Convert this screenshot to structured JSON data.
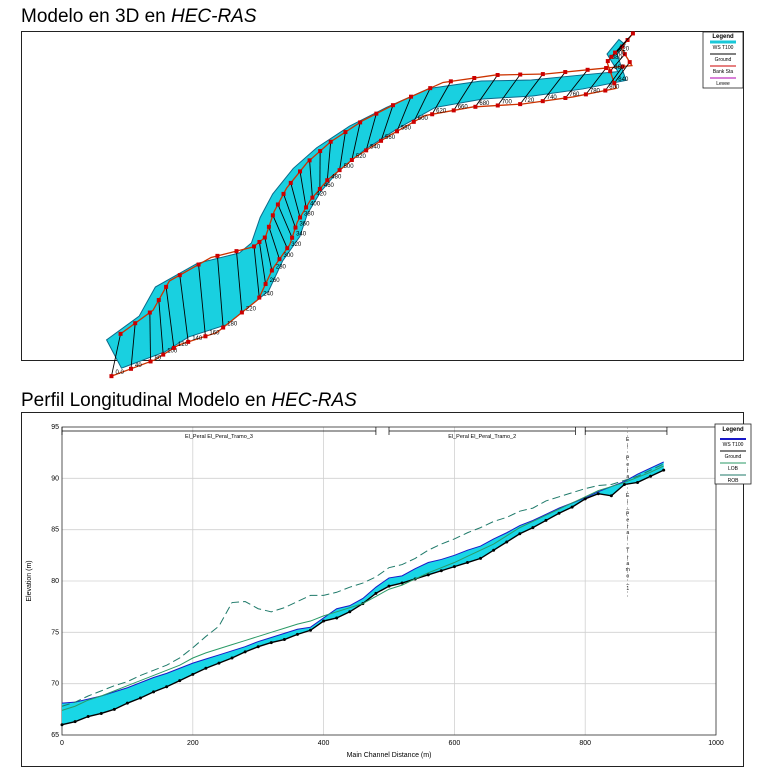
{
  "titles": {
    "top_plain": "Modelo en 3D en ",
    "top_italic": "HEC-RAS",
    "bottom_plain": "Perfil Longitudinal Modelo en ",
    "bottom_italic": "HEC-RAS"
  },
  "plan3d": {
    "legend": {
      "title": "Legend",
      "items": [
        {
          "label": "WS T100",
          "color": "#19c8d8"
        },
        {
          "label": "Ground",
          "color": "#000000"
        },
        {
          "label": "Bank Sta",
          "color": "#cc0000"
        },
        {
          "label": "Levee",
          "color": "#b000b0"
        }
      ]
    },
    "station_labels": [
      "0.0",
      "40",
      "80",
      "100",
      "120",
      "140",
      "160",
      "180",
      "220",
      "240",
      "260",
      "280",
      "300",
      "320",
      "340",
      "360",
      "380",
      "400",
      "420",
      "460",
      "480",
      "500",
      "520",
      "540",
      "560",
      "580",
      "600",
      "620",
      "660",
      "680",
      "700",
      "720",
      "740",
      "760",
      "780",
      "800",
      "840",
      "860",
      "880",
      "900",
      "920"
    ]
  },
  "chart_data": {
    "type": "line",
    "xlabel": "Main Channel Distance (m)",
    "ylabel": "Elevation (m)",
    "xlim": [
      0,
      1000
    ],
    "ylim": [
      65,
      95
    ],
    "x_ticks": [
      "0",
      "200",
      "400",
      "600",
      "800",
      "1000"
    ],
    "y_ticks": [
      "65",
      "70",
      "75",
      "80",
      "85",
      "90",
      "95"
    ],
    "grid": true,
    "legend_position": "top-right",
    "reaches": [
      {
        "label": "El_Peral El_Peral_Tramo_3",
        "x_start": 0,
        "x_end": 480
      },
      {
        "label": "El_Peral El_Peral_Tramo_2",
        "x_start": 500,
        "x_end": 785
      },
      {
        "label": "El Peral El_Peral_Tramo_1",
        "x_start": 800,
        "x_end": 925
      }
    ],
    "reach3_vertical_label": [
      "E",
      "l",
      "",
      "P",
      "e",
      "r",
      "a",
      "l",
      "",
      "E",
      "l",
      "_",
      "P",
      "e",
      "r",
      "a",
      "l",
      "_",
      "T",
      "r",
      "a",
      "m",
      "o",
      "_",
      "1"
    ],
    "series": [
      {
        "name": "WS T100",
        "color": "#1818c8",
        "x": [
          0,
          20,
          40,
          60,
          80,
          100,
          120,
          140,
          160,
          180,
          200,
          220,
          240,
          260,
          280,
          300,
          320,
          340,
          360,
          380,
          400,
          420,
          440,
          460,
          480,
          500,
          520,
          540,
          560,
          580,
          600,
          620,
          640,
          660,
          680,
          700,
          720,
          740,
          760,
          780,
          800,
          820,
          840,
          860,
          880,
          900,
          920
        ],
        "y": [
          68.1,
          68.2,
          68.5,
          68.8,
          69.2,
          69.6,
          70.1,
          70.6,
          71.0,
          71.5,
          72.0,
          72.4,
          72.8,
          73.2,
          73.6,
          74.1,
          74.5,
          74.9,
          75.3,
          75.5,
          76.4,
          77.3,
          77.6,
          78.3,
          79.4,
          80.3,
          80.5,
          81.2,
          81.8,
          82.1,
          82.5,
          83.0,
          83.4,
          84.1,
          84.7,
          85.4,
          85.9,
          86.5,
          87.1,
          87.6,
          88.1,
          88.7,
          89.2,
          89.7,
          90.4,
          91.0,
          91.6
        ]
      },
      {
        "name": "Ground",
        "color": "#000000",
        "x": [
          0,
          20,
          40,
          60,
          80,
          100,
          120,
          140,
          160,
          180,
          200,
          220,
          240,
          260,
          280,
          300,
          320,
          340,
          360,
          380,
          400,
          420,
          440,
          460,
          480,
          500,
          520,
          540,
          560,
          580,
          600,
          620,
          640,
          660,
          680,
          700,
          720,
          740,
          760,
          780,
          800,
          820,
          840,
          860,
          880,
          900,
          920
        ],
        "y": [
          66.0,
          66.3,
          66.8,
          67.1,
          67.5,
          68.1,
          68.6,
          69.2,
          69.7,
          70.3,
          70.9,
          71.5,
          72.0,
          72.5,
          73.1,
          73.6,
          74.0,
          74.3,
          74.8,
          75.2,
          76.1,
          76.4,
          77.0,
          77.8,
          78.8,
          79.5,
          79.8,
          80.2,
          80.6,
          81.0,
          81.4,
          81.8,
          82.2,
          83.0,
          83.8,
          84.6,
          85.2,
          85.9,
          86.6,
          87.2,
          88.0,
          88.5,
          88.3,
          89.4,
          89.6,
          90.2,
          90.8
        ]
      },
      {
        "name": "LOB",
        "color": "#2a9a66",
        "x": [
          0,
          20,
          40,
          60,
          80,
          100,
          120,
          140,
          160,
          180,
          200,
          220,
          240,
          260,
          280,
          300,
          320,
          340,
          360,
          380,
          400,
          420,
          440,
          460,
          480,
          500,
          520,
          540,
          560,
          580,
          600,
          620,
          640,
          660,
          680,
          700,
          720,
          740,
          760,
          780,
          800,
          820,
          840,
          860,
          880,
          900,
          920
        ],
        "y": [
          67.4,
          67.8,
          68.4,
          68.8,
          69.3,
          69.8,
          70.3,
          70.8,
          71.3,
          71.8,
          72.5,
          73.0,
          73.4,
          73.8,
          74.2,
          74.6,
          75.0,
          75.4,
          75.8,
          76.1,
          76.6,
          77.0,
          77.4,
          77.8,
          78.5,
          79.2,
          79.6,
          80.2,
          80.8,
          81.3,
          81.8,
          82.4,
          83.0,
          83.6,
          84.4,
          85.2,
          85.8,
          86.4,
          87.0,
          87.6,
          88.2,
          88.8,
          89.2,
          89.6,
          90.1,
          90.6,
          91.2
        ]
      },
      {
        "name": "ROB",
        "color": "#1f7a6a",
        "x": [
          0,
          20,
          40,
          60,
          80,
          100,
          120,
          140,
          160,
          180,
          200,
          220,
          240,
          260,
          280,
          300,
          320,
          340,
          360,
          380,
          400,
          420,
          440,
          460,
          480,
          500,
          520,
          540,
          560,
          580,
          600,
          620,
          640,
          660,
          680,
          700,
          720,
          740,
          760,
          780,
          800,
          820,
          840,
          860,
          880,
          900,
          920
        ],
        "y": [
          67.8,
          68.2,
          68.8,
          69.3,
          69.8,
          70.2,
          70.8,
          71.3,
          71.8,
          72.5,
          73.5,
          74.6,
          75.6,
          77.9,
          78.0,
          77.3,
          77.0,
          77.4,
          78.0,
          78.6,
          78.6,
          78.9,
          79.4,
          79.8,
          80.4,
          81.3,
          81.6,
          82.2,
          83.0,
          83.6,
          84.1,
          84.7,
          85.2,
          85.8,
          86.2,
          86.8,
          87.1,
          87.8,
          88.2,
          88.6,
          89.0,
          89.3,
          89.4,
          89.8,
          90.2,
          90.8,
          91.4
        ]
      }
    ],
    "legend_items": [
      "Legend",
      "WS T100",
      "Ground",
      "LOB",
      "ROB"
    ]
  }
}
